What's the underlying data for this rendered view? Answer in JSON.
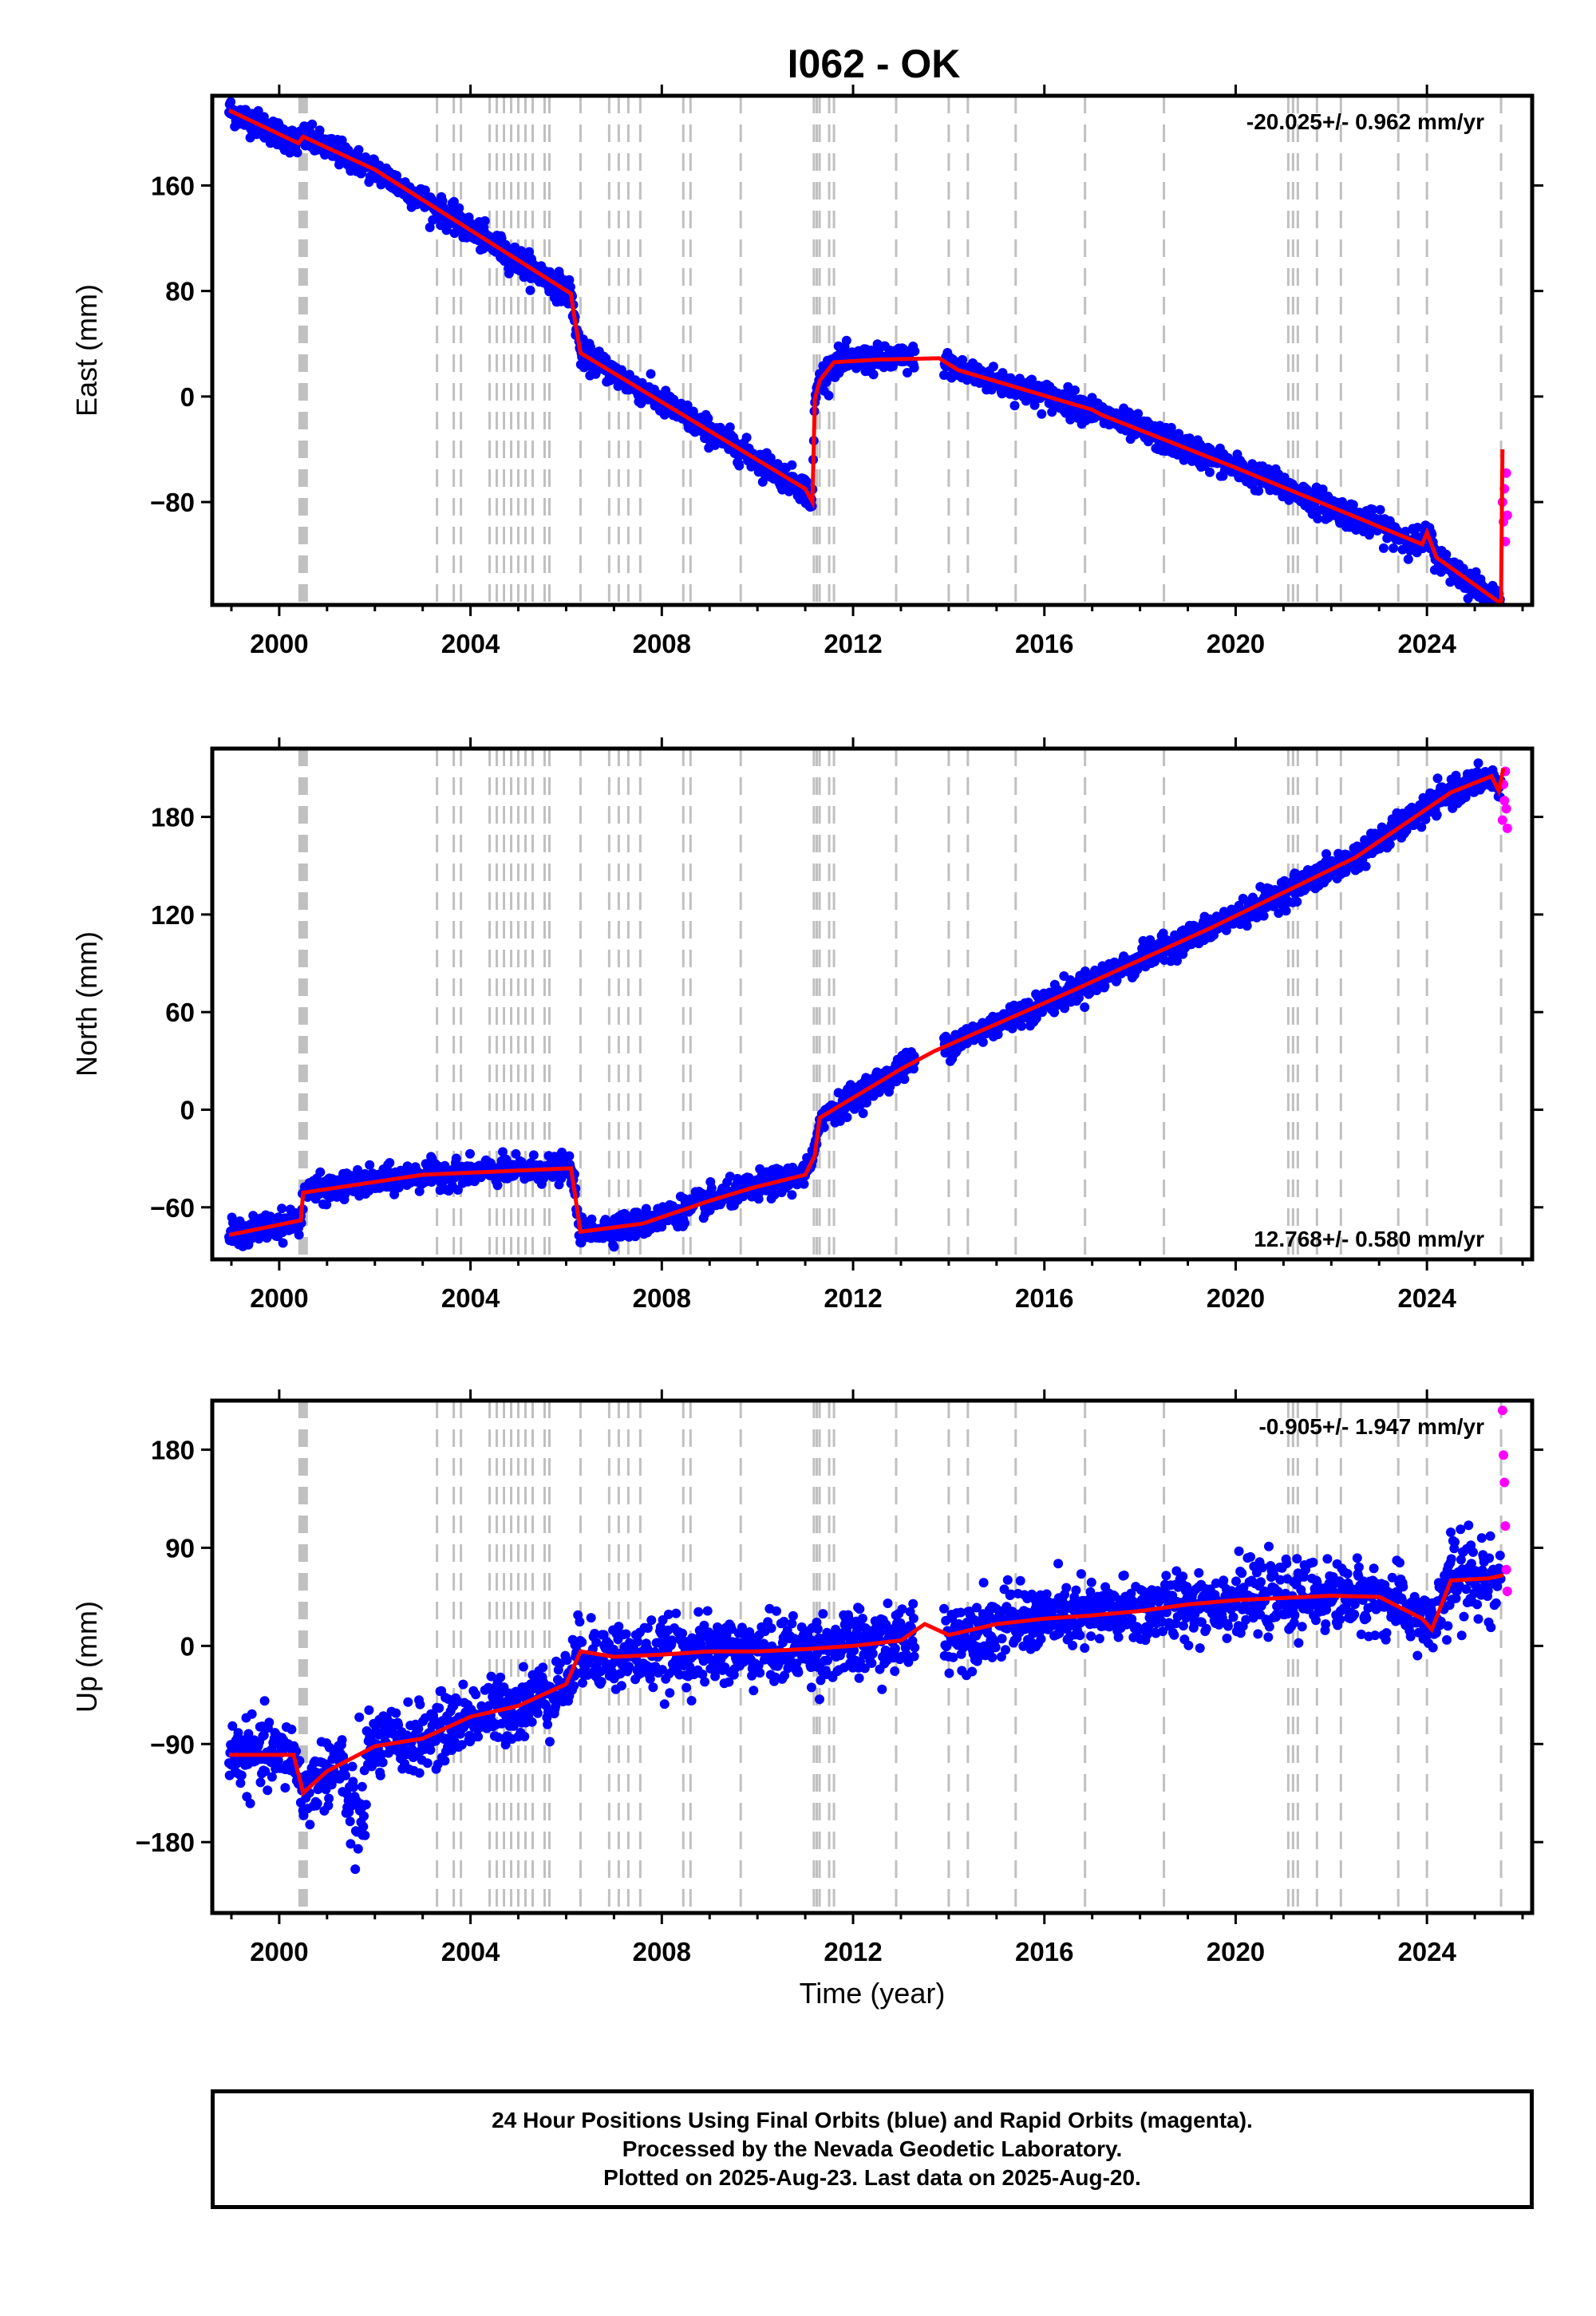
{
  "title": "I062 - OK",
  "xlabel": "Time (year)",
  "x_tick_labels": [
    "2000",
    "2004",
    "2008",
    "2012",
    "2016",
    "2020",
    "2024"
  ],
  "colors": {
    "final_orbits": "#0000ff",
    "rapid_orbits": "#ff00ff",
    "model_fit": "#ff0000",
    "event_lines": "#c0c0c0"
  },
  "event_lines_years": [
    2000.45,
    2000.5,
    2000.55,
    2003.3,
    2003.65,
    2003.8,
    2004.4,
    2004.55,
    2004.7,
    2004.85,
    2005.0,
    2005.15,
    2005.3,
    2005.55,
    2005.65,
    2006.3,
    2006.9,
    2007.1,
    2007.3,
    2007.55,
    2008.45,
    2008.6,
    2009.65,
    2011.18,
    2011.24,
    2011.3,
    2011.5,
    2011.6,
    2012.9,
    2014.0,
    2014.4,
    2015.4,
    2016.85,
    2018.5,
    2021.1,
    2021.2,
    2021.3,
    2021.7,
    2022.2,
    2023.4,
    2024.0,
    2025.55
  ],
  "chart_data": [
    {
      "type": "scatter",
      "component": "East",
      "ylabel": "East (mm)",
      "xlim": [
        1998.6,
        2026.2
      ],
      "ylim": [
        -158,
        228
      ],
      "y_ticks": [
        -80,
        0,
        80,
        160
      ],
      "y_tick_labels": [
        "−80",
        "0",
        "80",
        "160"
      ],
      "velocity": "-20.025+/- 0.962 mm/yr",
      "velocity_position": "top-right",
      "series": [
        {
          "color": "#ff0000",
          "x": [
            1998.95,
            2000.4,
            2000.5,
            2002.0,
            2006.1,
            2006.15,
            2006.3,
            2011.0,
            2011.15,
            2011.2,
            2011.3,
            2011.6,
            2012.5,
            2013.8,
            2014.2,
            2017.0,
            2017.2,
            2020.0,
            2023.9,
            2024.0,
            2024.2,
            2025.55,
            2025.58
          ],
          "y": [
            217,
            192,
            197,
            172,
            78,
            65,
            33,
            -70,
            -80,
            -2,
            12,
            26,
            28,
            29,
            20,
            -10,
            -14,
            -54,
            -112,
            -103,
            -122,
            -157,
            -40
          ]
        },
        {
          "color": "#ff00ff",
          "x": [
            2025.58,
            2025.6,
            2025.62,
            2025.64,
            2025.66,
            2025.68
          ],
          "y": [
            -80,
            -95,
            -70,
            -110,
            -58,
            -90
          ]
        }
      ]
    },
    {
      "type": "scatter",
      "component": "North",
      "ylabel": "North (mm)",
      "xlim": [
        1998.6,
        2026.2
      ],
      "ylim": [
        -92,
        222
      ],
      "y_ticks": [
        -60,
        0,
        60,
        120,
        180
      ],
      "y_tick_labels": [
        "−60",
        "0",
        "60",
        "120",
        "180"
      ],
      "velocity": "12.768+/- 0.580 mm/yr",
      "velocity_position": "bottom-right",
      "series": [
        {
          "color": "#ff0000",
          "x": [
            1998.95,
            2000.45,
            2000.5,
            2003.0,
            2006.1,
            2006.2,
            2006.3,
            2007.6,
            2009.0,
            2009.9,
            2011.0,
            2011.2,
            2011.3,
            2013.0,
            2013.7,
            2016.5,
            2019.5,
            2022.5,
            2024.5,
            2025.35,
            2025.5,
            2025.6
          ],
          "y": [
            -77,
            -68,
            -51,
            -40,
            -36,
            -55,
            -75,
            -70,
            -56,
            -48,
            -40,
            -28,
            -5,
            25,
            36,
            72,
            112,
            155,
            195,
            205,
            196,
            210
          ]
        },
        {
          "color": "#ff00ff",
          "x": [
            2025.58,
            2025.6,
            2025.62,
            2025.64,
            2025.66,
            2025.68
          ],
          "y": [
            178,
            200,
            190,
            208,
            185,
            173
          ]
        }
      ]
    },
    {
      "type": "scatter",
      "component": "Up",
      "ylabel": "Up (mm)",
      "xlim": [
        1998.6,
        2026.2
      ],
      "ylim": [
        -245,
        225
      ],
      "y_ticks": [
        -180,
        -90,
        0,
        90,
        180
      ],
      "y_tick_labels": [
        "−180",
        "−90",
        "0",
        "90",
        "180"
      ],
      "velocity": "-0.905+/- 1.947 mm/yr",
      "velocity_position": "top-right",
      "series": [
        {
          "color": "#ff0000",
          "x": [
            1998.95,
            2000.3,
            2000.5,
            2001.0,
            2002.0,
            2003.0,
            2004.0,
            2005.0,
            2006.0,
            2006.3,
            2007.0,
            2008.0,
            2009.0,
            2010.0,
            2011.0,
            2012.0,
            2013.0,
            2013.5,
            2014.0,
            2015.0,
            2016.0,
            2017.0,
            2018.0,
            2019.0,
            2020.0,
            2021.0,
            2022.0,
            2023.0,
            2023.9,
            2024.1,
            2024.5,
            2025.3,
            2025.6
          ],
          "y": [
            -100,
            -100,
            -135,
            -115,
            -92,
            -85,
            -65,
            -55,
            -35,
            -5,
            -10,
            -8,
            -5,
            -5,
            -3,
            0,
            5,
            20,
            10,
            20,
            25,
            28,
            32,
            38,
            42,
            44,
            46,
            45,
            25,
            15,
            60,
            62,
            65
          ]
        },
        {
          "color": "#ff00ff",
          "x": [
            2025.58,
            2025.6,
            2025.62,
            2025.64,
            2025.66,
            2025.68
          ],
          "y": [
            216,
            175,
            150,
            110,
            70,
            50
          ]
        }
      ]
    }
  ],
  "footer": {
    "line1": "24 Hour Positions Using Final Orbits (blue) and Rapid Orbits (magenta).",
    "line2": "Processed by the Nevada Geodetic Laboratory.",
    "line3": "Plotted on 2025-Aug-23. Last data on 2025-Aug-20."
  }
}
